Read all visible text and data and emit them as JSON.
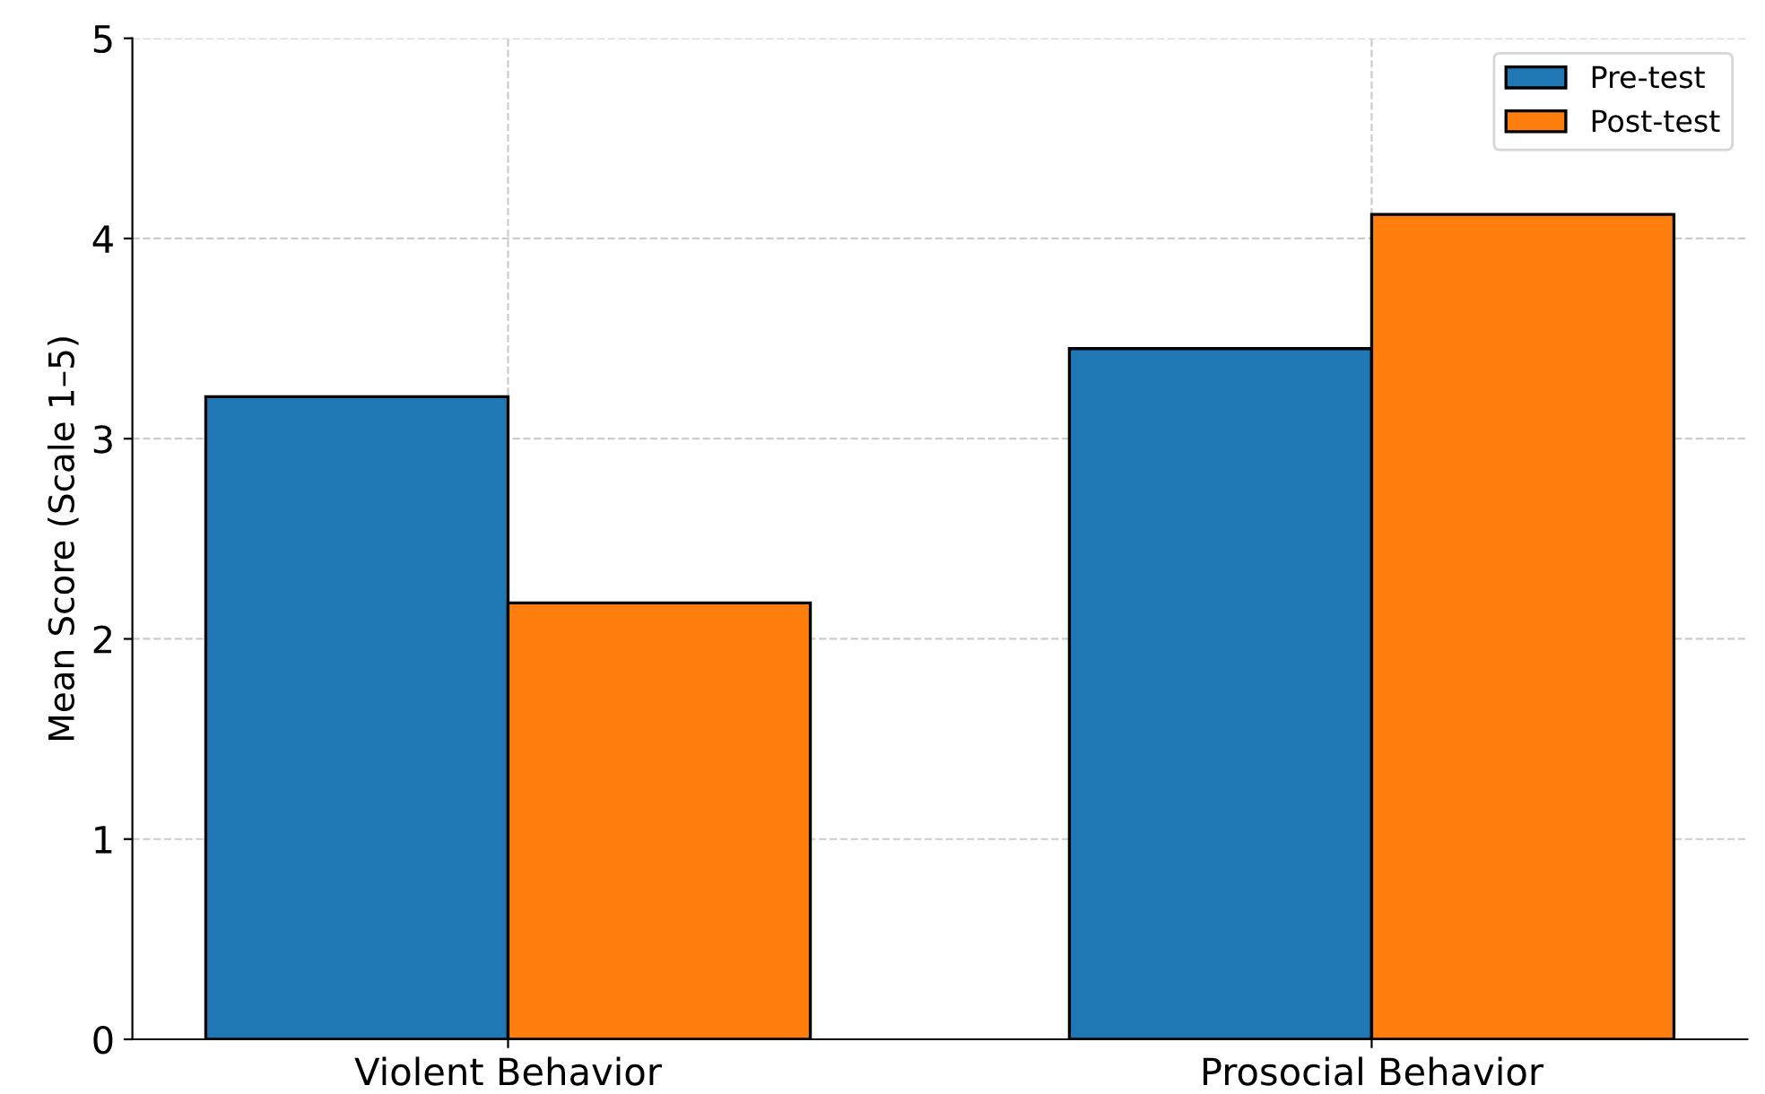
{
  "chart_data": {
    "type": "bar",
    "ylabel": "Mean Score (Scale 1–5)",
    "categories": [
      "Violent Behavior",
      "Prosocial Behavior"
    ],
    "series": [
      {
        "name": "Pre-test",
        "color": "#1f77b4",
        "values": [
          3.21,
          3.45
        ]
      },
      {
        "name": "Post-test",
        "color": "#ff7f0e",
        "values": [
          2.18,
          4.12
        ]
      }
    ],
    "ylim": [
      0,
      5
    ],
    "yticks": [
      0,
      1,
      2,
      3,
      4,
      5
    ],
    "grid": true,
    "legend": "top right"
  }
}
